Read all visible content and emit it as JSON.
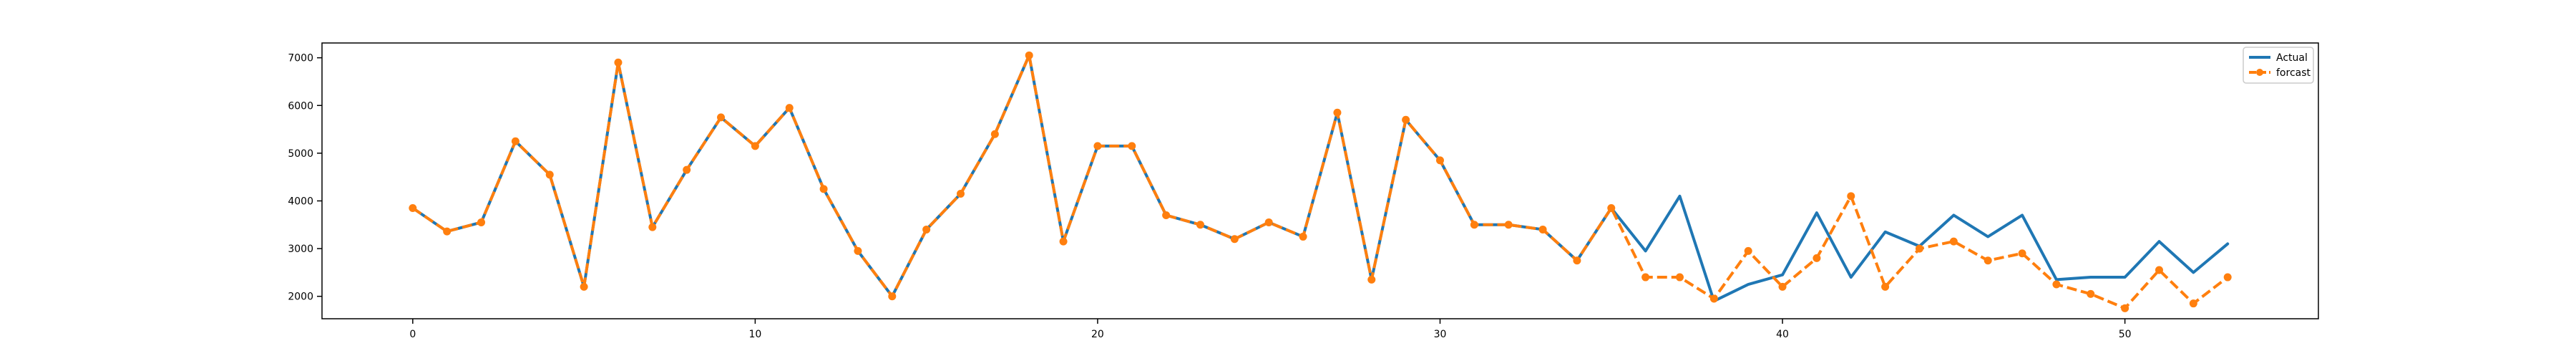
{
  "chart_data": {
    "type": "line",
    "title": "",
    "xlabel": "",
    "ylabel": "",
    "xlim": [
      -2.65,
      55.65
    ],
    "ylim": [
      1530,
      7310
    ],
    "x_ticks": [
      0,
      10,
      20,
      30,
      40,
      50
    ],
    "y_ticks": [
      2000,
      3000,
      4000,
      5000,
      6000,
      7000
    ],
    "grid": false,
    "legend_position": "top-right",
    "series": [
      {
        "name": "Actual",
        "color": "#1f77b4",
        "style": "solid",
        "x": [
          0,
          1,
          2,
          3,
          4,
          5,
          6,
          7,
          8,
          9,
          10,
          11,
          12,
          13,
          14,
          15,
          16,
          17,
          18,
          19,
          20,
          21,
          22,
          23,
          24,
          25,
          26,
          27,
          28,
          29,
          30,
          31,
          32,
          33,
          34,
          35,
          36,
          37,
          38,
          39,
          40,
          41,
          42,
          43,
          44,
          45,
          46,
          47,
          48,
          49,
          50,
          51,
          52,
          53
        ],
        "values": [
          3850,
          3360,
          3550,
          5250,
          4550,
          2200,
          6900,
          3450,
          4650,
          5750,
          5150,
          5950,
          4250,
          2950,
          2000,
          3400,
          4150,
          5400,
          7050,
          3150,
          5150,
          5150,
          3700,
          3500,
          3200,
          3550,
          3250,
          5850,
          2350,
          5700,
          4850,
          3500,
          3500,
          3400,
          2750,
          3850,
          2950,
          4100,
          1900,
          2250,
          2450,
          3750,
          2400,
          3350,
          3050,
          3700,
          3250,
          3700,
          2350,
          2400,
          2400,
          3150,
          2500,
          3100
        ]
      },
      {
        "name": "forcast",
        "color": "#ff7f0e",
        "style": "dashed",
        "marker": "circle",
        "x": [
          0,
          1,
          2,
          3,
          4,
          5,
          6,
          7,
          8,
          9,
          10,
          11,
          12,
          13,
          14,
          15,
          16,
          17,
          18,
          19,
          20,
          21,
          22,
          23,
          24,
          25,
          26,
          27,
          28,
          29,
          30,
          31,
          32,
          33,
          34,
          35,
          36,
          37,
          38,
          39,
          40,
          41,
          42,
          43,
          44,
          45,
          46,
          47,
          48,
          49,
          50,
          51,
          52,
          53
        ],
        "values": [
          3850,
          3360,
          3550,
          5250,
          4550,
          2200,
          6900,
          3450,
          4650,
          5750,
          5150,
          5950,
          4250,
          2950,
          2000,
          3400,
          4150,
          5400,
          7050,
          3150,
          5150,
          5150,
          3700,
          3500,
          3200,
          3550,
          3250,
          5850,
          2350,
          5700,
          4850,
          3500,
          3500,
          3400,
          2750,
          3850,
          2400,
          2400,
          1950,
          2950,
          2200,
          2800,
          4100,
          2200,
          3000,
          3150,
          2750,
          2900,
          2250,
          2050,
          1750,
          2550,
          1850,
          2400
        ]
      }
    ]
  }
}
